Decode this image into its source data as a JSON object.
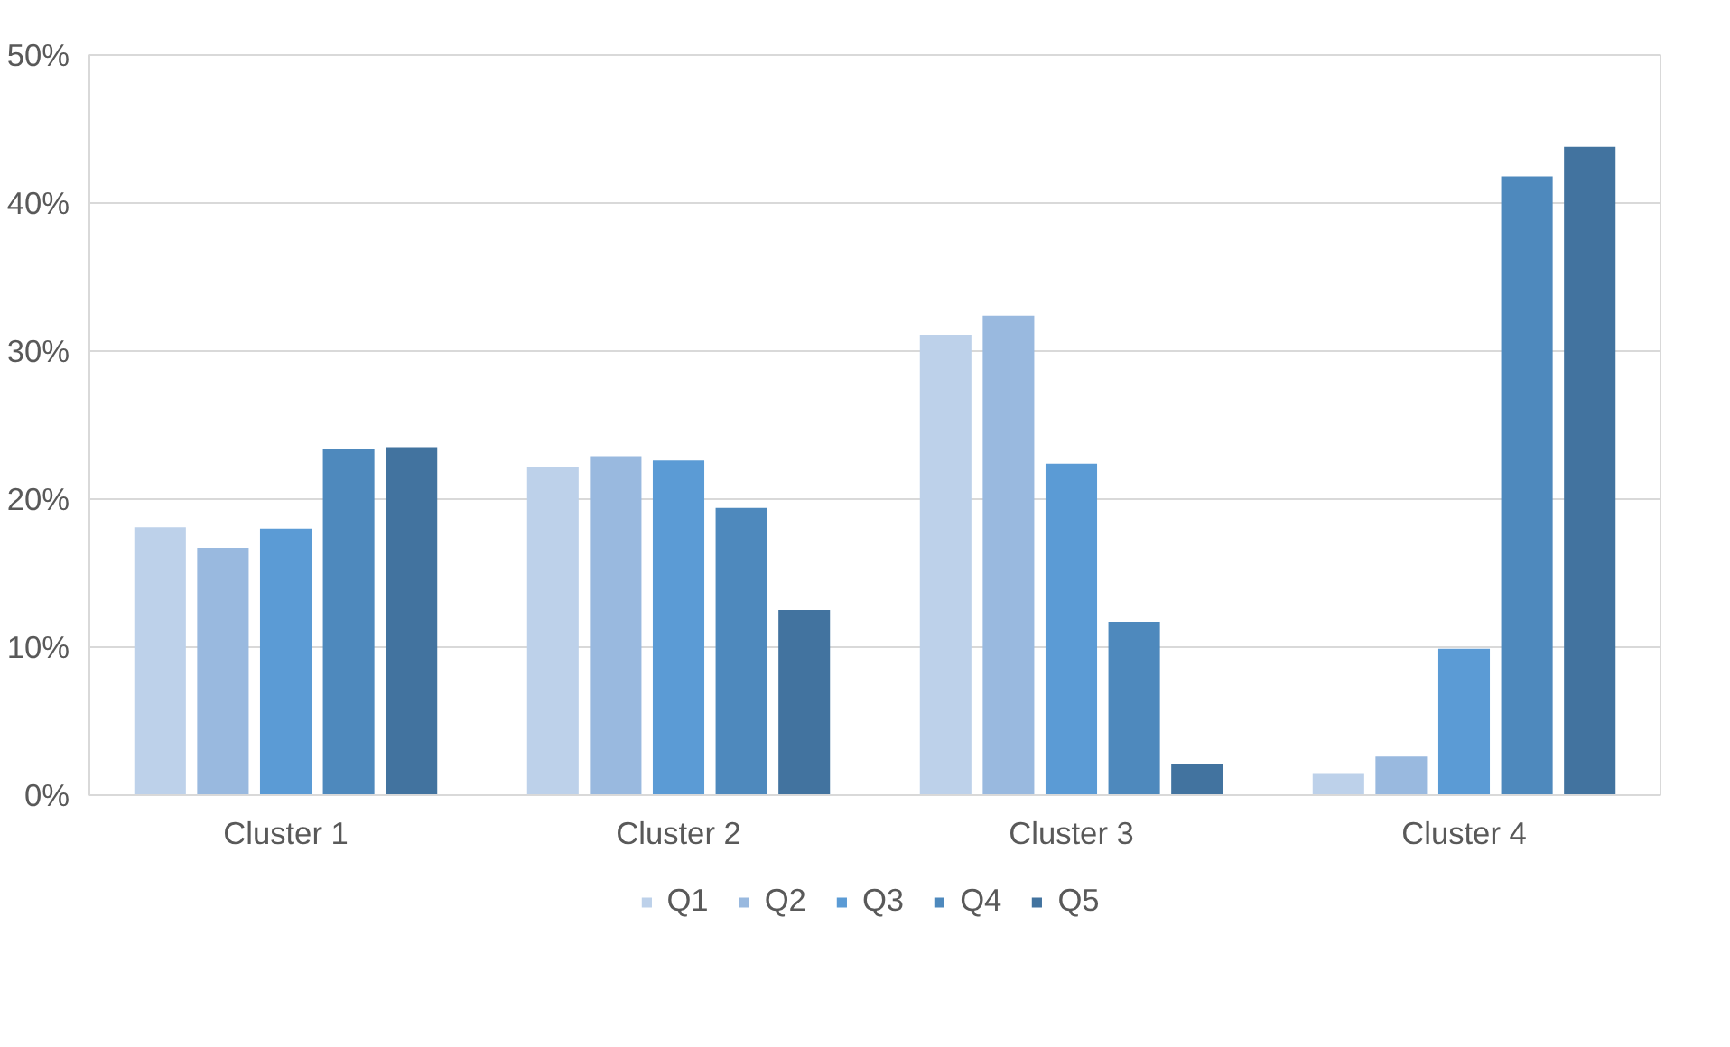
{
  "chart_data": {
    "type": "bar",
    "categories": [
      "Cluster 1",
      "Cluster 2",
      "Cluster 3",
      "Cluster 4"
    ],
    "series": [
      {
        "name": "Q1",
        "color": "#bdd1ea",
        "values": [
          18.1,
          22.2,
          31.1,
          1.5
        ]
      },
      {
        "name": "Q2",
        "color": "#99b9df",
        "values": [
          16.7,
          22.9,
          32.4,
          2.6
        ]
      },
      {
        "name": "Q3",
        "color": "#5b9bd5",
        "values": [
          18.0,
          22.6,
          22.4,
          9.9
        ]
      },
      {
        "name": "Q4",
        "color": "#4e89bd",
        "values": [
          23.4,
          19.4,
          11.7,
          41.8
        ]
      },
      {
        "name": "Q5",
        "color": "#42739f",
        "values": [
          23.5,
          12.5,
          2.1,
          43.8
        ]
      }
    ],
    "ylim": [
      0,
      50
    ],
    "yticks": [
      {
        "value": 0,
        "label": "0%"
      },
      {
        "value": 10,
        "label": "10%"
      },
      {
        "value": 20,
        "label": "20%"
      },
      {
        "value": 30,
        "label": "30%"
      },
      {
        "value": 40,
        "label": "40%"
      },
      {
        "value": 50,
        "label": "50%"
      }
    ],
    "grid": "y",
    "legend": "bottom"
  }
}
